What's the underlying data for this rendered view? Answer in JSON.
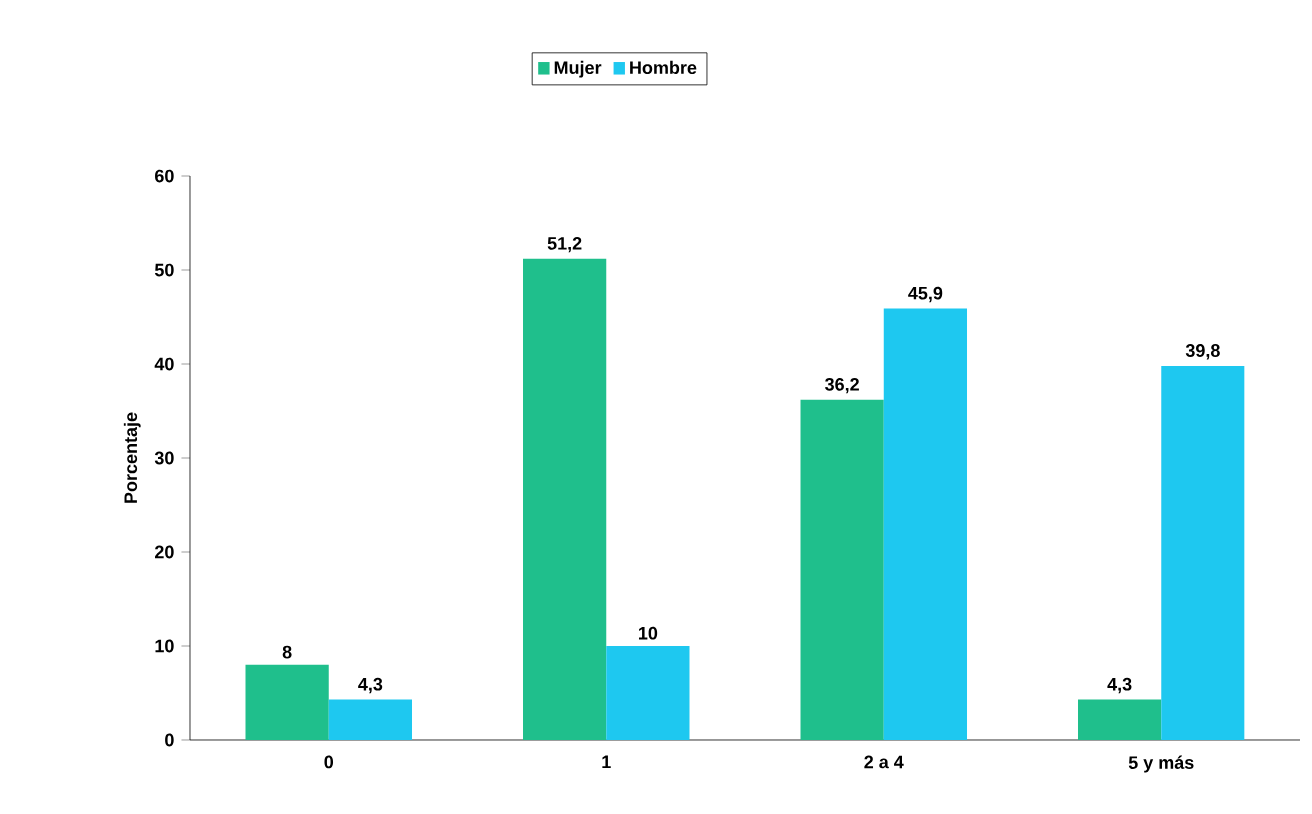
{
  "chart_data": {
    "type": "bar",
    "ylabel": "Porcentaje",
    "categories": [
      "0",
      "1",
      "2 a 4",
      "5 y más"
    ],
    "series": [
      {
        "name": "Mujer",
        "color": "#1fbf8c",
        "values": [
          8,
          51.2,
          36.2,
          4.3
        ],
        "value_labels": [
          "8",
          "51,2",
          "36,2",
          "4,3"
        ]
      },
      {
        "name": "Hombre",
        "color": "#1ec8f0",
        "values": [
          4.3,
          10,
          45.9,
          39.8
        ],
        "value_labels": [
          "4,3",
          "10",
          "45,9",
          "39,8"
        ]
      }
    ],
    "ylim": [
      0,
      60
    ],
    "yticks": [
      0,
      10,
      20,
      30,
      40,
      50,
      60
    ],
    "legend": "top"
  }
}
